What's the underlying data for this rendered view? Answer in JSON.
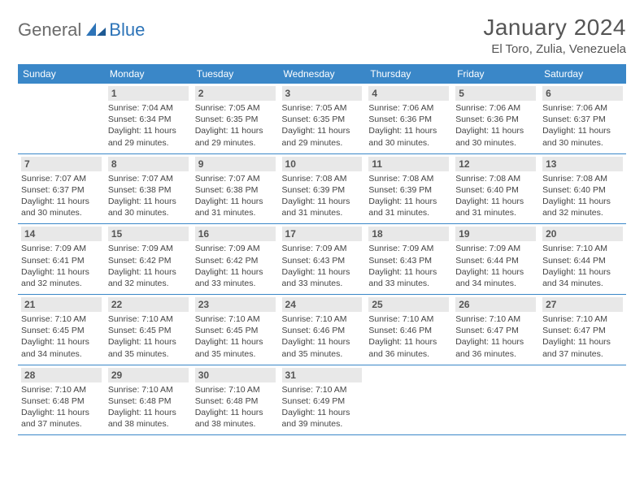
{
  "brand": {
    "part1": "General",
    "part2": "Blue"
  },
  "title": "January 2024",
  "location": "El Toro, Zulia, Venezuela",
  "header_bg": "#3a87c8",
  "header_fg": "#ffffff",
  "daynum_bg": "#e8e8e8",
  "border_color": "#3a87c8",
  "weekdays": [
    "Sunday",
    "Monday",
    "Tuesday",
    "Wednesday",
    "Thursday",
    "Friday",
    "Saturday"
  ],
  "weeks": [
    [
      null,
      {
        "n": "1",
        "sr": "Sunrise: 7:04 AM",
        "ss": "Sunset: 6:34 PM",
        "d1": "Daylight: 11 hours",
        "d2": "and 29 minutes."
      },
      {
        "n": "2",
        "sr": "Sunrise: 7:05 AM",
        "ss": "Sunset: 6:35 PM",
        "d1": "Daylight: 11 hours",
        "d2": "and 29 minutes."
      },
      {
        "n": "3",
        "sr": "Sunrise: 7:05 AM",
        "ss": "Sunset: 6:35 PM",
        "d1": "Daylight: 11 hours",
        "d2": "and 29 minutes."
      },
      {
        "n": "4",
        "sr": "Sunrise: 7:06 AM",
        "ss": "Sunset: 6:36 PM",
        "d1": "Daylight: 11 hours",
        "d2": "and 30 minutes."
      },
      {
        "n": "5",
        "sr": "Sunrise: 7:06 AM",
        "ss": "Sunset: 6:36 PM",
        "d1": "Daylight: 11 hours",
        "d2": "and 30 minutes."
      },
      {
        "n": "6",
        "sr": "Sunrise: 7:06 AM",
        "ss": "Sunset: 6:37 PM",
        "d1": "Daylight: 11 hours",
        "d2": "and 30 minutes."
      }
    ],
    [
      {
        "n": "7",
        "sr": "Sunrise: 7:07 AM",
        "ss": "Sunset: 6:37 PM",
        "d1": "Daylight: 11 hours",
        "d2": "and 30 minutes."
      },
      {
        "n": "8",
        "sr": "Sunrise: 7:07 AM",
        "ss": "Sunset: 6:38 PM",
        "d1": "Daylight: 11 hours",
        "d2": "and 30 minutes."
      },
      {
        "n": "9",
        "sr": "Sunrise: 7:07 AM",
        "ss": "Sunset: 6:38 PM",
        "d1": "Daylight: 11 hours",
        "d2": "and 31 minutes."
      },
      {
        "n": "10",
        "sr": "Sunrise: 7:08 AM",
        "ss": "Sunset: 6:39 PM",
        "d1": "Daylight: 11 hours",
        "d2": "and 31 minutes."
      },
      {
        "n": "11",
        "sr": "Sunrise: 7:08 AM",
        "ss": "Sunset: 6:39 PM",
        "d1": "Daylight: 11 hours",
        "d2": "and 31 minutes."
      },
      {
        "n": "12",
        "sr": "Sunrise: 7:08 AM",
        "ss": "Sunset: 6:40 PM",
        "d1": "Daylight: 11 hours",
        "d2": "and 31 minutes."
      },
      {
        "n": "13",
        "sr": "Sunrise: 7:08 AM",
        "ss": "Sunset: 6:40 PM",
        "d1": "Daylight: 11 hours",
        "d2": "and 32 minutes."
      }
    ],
    [
      {
        "n": "14",
        "sr": "Sunrise: 7:09 AM",
        "ss": "Sunset: 6:41 PM",
        "d1": "Daylight: 11 hours",
        "d2": "and 32 minutes."
      },
      {
        "n": "15",
        "sr": "Sunrise: 7:09 AM",
        "ss": "Sunset: 6:42 PM",
        "d1": "Daylight: 11 hours",
        "d2": "and 32 minutes."
      },
      {
        "n": "16",
        "sr": "Sunrise: 7:09 AM",
        "ss": "Sunset: 6:42 PM",
        "d1": "Daylight: 11 hours",
        "d2": "and 33 minutes."
      },
      {
        "n": "17",
        "sr": "Sunrise: 7:09 AM",
        "ss": "Sunset: 6:43 PM",
        "d1": "Daylight: 11 hours",
        "d2": "and 33 minutes."
      },
      {
        "n": "18",
        "sr": "Sunrise: 7:09 AM",
        "ss": "Sunset: 6:43 PM",
        "d1": "Daylight: 11 hours",
        "d2": "and 33 minutes."
      },
      {
        "n": "19",
        "sr": "Sunrise: 7:09 AM",
        "ss": "Sunset: 6:44 PM",
        "d1": "Daylight: 11 hours",
        "d2": "and 34 minutes."
      },
      {
        "n": "20",
        "sr": "Sunrise: 7:10 AM",
        "ss": "Sunset: 6:44 PM",
        "d1": "Daylight: 11 hours",
        "d2": "and 34 minutes."
      }
    ],
    [
      {
        "n": "21",
        "sr": "Sunrise: 7:10 AM",
        "ss": "Sunset: 6:45 PM",
        "d1": "Daylight: 11 hours",
        "d2": "and 34 minutes."
      },
      {
        "n": "22",
        "sr": "Sunrise: 7:10 AM",
        "ss": "Sunset: 6:45 PM",
        "d1": "Daylight: 11 hours",
        "d2": "and 35 minutes."
      },
      {
        "n": "23",
        "sr": "Sunrise: 7:10 AM",
        "ss": "Sunset: 6:45 PM",
        "d1": "Daylight: 11 hours",
        "d2": "and 35 minutes."
      },
      {
        "n": "24",
        "sr": "Sunrise: 7:10 AM",
        "ss": "Sunset: 6:46 PM",
        "d1": "Daylight: 11 hours",
        "d2": "and 35 minutes."
      },
      {
        "n": "25",
        "sr": "Sunrise: 7:10 AM",
        "ss": "Sunset: 6:46 PM",
        "d1": "Daylight: 11 hours",
        "d2": "and 36 minutes."
      },
      {
        "n": "26",
        "sr": "Sunrise: 7:10 AM",
        "ss": "Sunset: 6:47 PM",
        "d1": "Daylight: 11 hours",
        "d2": "and 36 minutes."
      },
      {
        "n": "27",
        "sr": "Sunrise: 7:10 AM",
        "ss": "Sunset: 6:47 PM",
        "d1": "Daylight: 11 hours",
        "d2": "and 37 minutes."
      }
    ],
    [
      {
        "n": "28",
        "sr": "Sunrise: 7:10 AM",
        "ss": "Sunset: 6:48 PM",
        "d1": "Daylight: 11 hours",
        "d2": "and 37 minutes."
      },
      {
        "n": "29",
        "sr": "Sunrise: 7:10 AM",
        "ss": "Sunset: 6:48 PM",
        "d1": "Daylight: 11 hours",
        "d2": "and 38 minutes."
      },
      {
        "n": "30",
        "sr": "Sunrise: 7:10 AM",
        "ss": "Sunset: 6:48 PM",
        "d1": "Daylight: 11 hours",
        "d2": "and 38 minutes."
      },
      {
        "n": "31",
        "sr": "Sunrise: 7:10 AM",
        "ss": "Sunset: 6:49 PM",
        "d1": "Daylight: 11 hours",
        "d2": "and 39 minutes."
      },
      null,
      null,
      null
    ]
  ]
}
